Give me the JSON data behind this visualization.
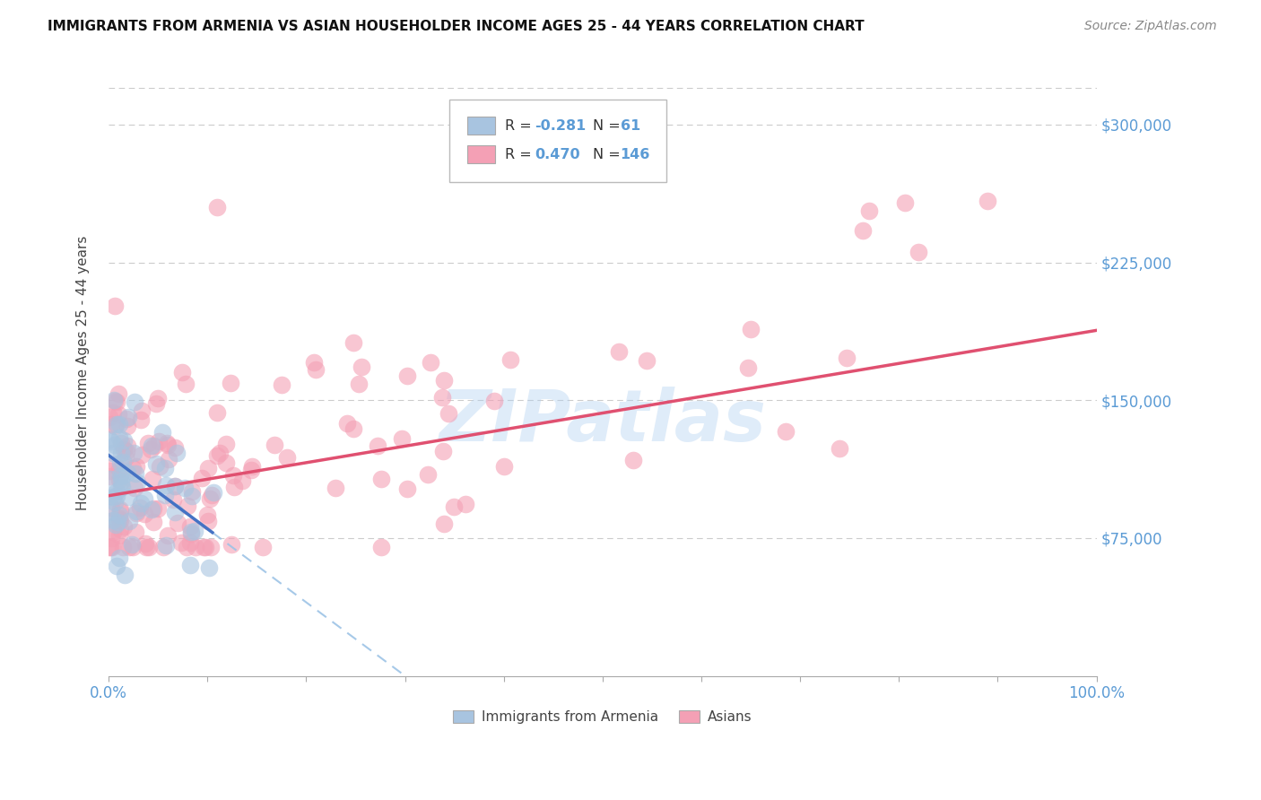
{
  "title": "IMMIGRANTS FROM ARMENIA VS ASIAN HOUSEHOLDER INCOME AGES 25 - 44 YEARS CORRELATION CHART",
  "source": "Source: ZipAtlas.com",
  "ylabel": "Householder Income Ages 25 - 44 years",
  "xlim": [
    0,
    1.0
  ],
  "ylim": [
    0,
    330000
  ],
  "ytick_values": [
    75000,
    150000,
    225000,
    300000
  ],
  "ytick_labels": [
    "$75,000",
    "$150,000",
    "$225,000",
    "$300,000"
  ],
  "color_armenia": "#a8c4e0",
  "color_asians": "#f4a0b5",
  "line_color_armenia_solid": "#4472c4",
  "line_color_armenia_dash": "#9dc3e6",
  "line_color_asians": "#e05070",
  "watermark": "ZIPatlas"
}
